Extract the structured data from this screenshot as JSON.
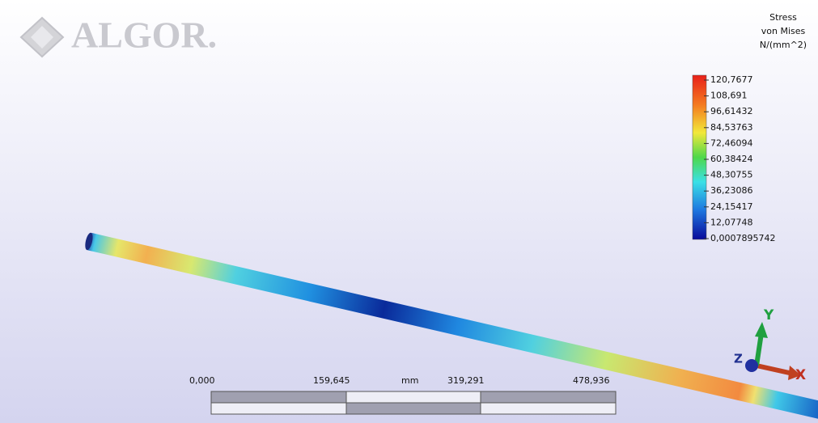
{
  "logo": "ALGOR.",
  "legend": {
    "title": [
      "Stress",
      "von Mises",
      "N/(mm^2)"
    ],
    "labels": [
      "120,7677",
      "108,691",
      "96,61432",
      "84,53763",
      "72,46094",
      "60,38424",
      "48,30755",
      "36,23086",
      "24,15417",
      "12,07748",
      "0,0007895742"
    ]
  },
  "scale_bar": {
    "labels": [
      "0,000",
      "159,645",
      "319,291",
      "478,936"
    ],
    "unit": "mm"
  },
  "axes": {
    "x": "X",
    "y": "Y",
    "z": "Z"
  }
}
